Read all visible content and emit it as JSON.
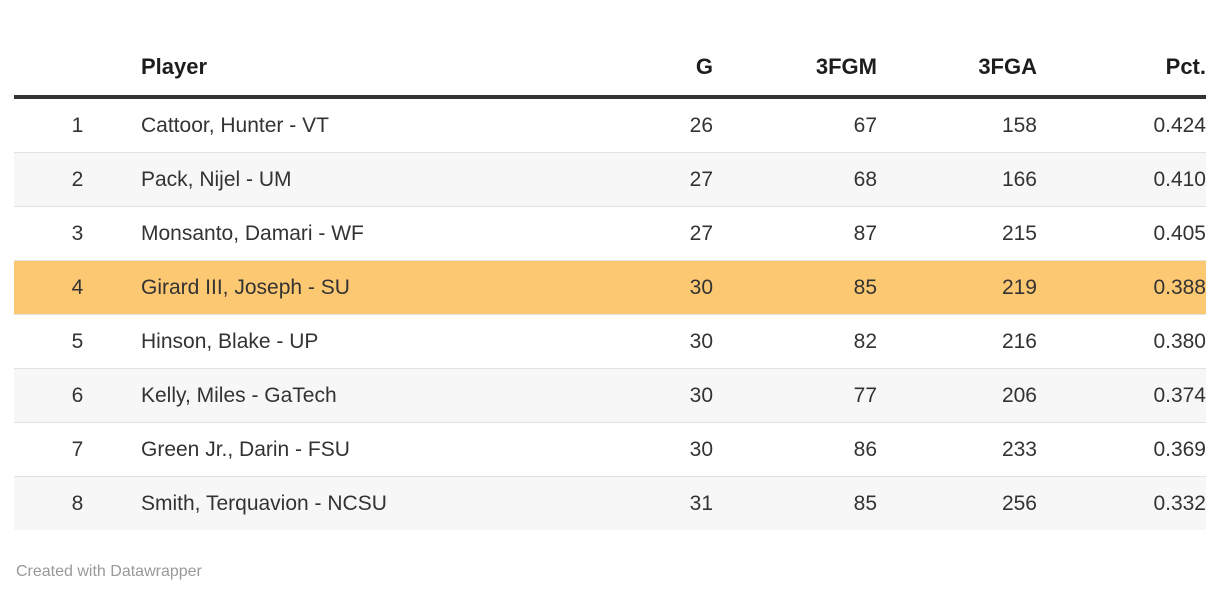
{
  "chart_data": {
    "type": "table",
    "columns": [
      {
        "label": "",
        "align": "center"
      },
      {
        "label": "Player",
        "align": "left"
      },
      {
        "label": "G",
        "align": "right"
      },
      {
        "label": "3FGM",
        "align": "right"
      },
      {
        "label": "3FGA",
        "align": "right"
      },
      {
        "label": "Pct.",
        "align": "right"
      }
    ],
    "rows": [
      {
        "rank": "1",
        "player": "Cattoor, Hunter - VT",
        "g": "26",
        "fgm3": "67",
        "fga3": "158",
        "pct": "0.424",
        "highlight": false
      },
      {
        "rank": "2",
        "player": "Pack, Nijel - UM",
        "g": "27",
        "fgm3": "68",
        "fga3": "166",
        "pct": "0.410",
        "highlight": false
      },
      {
        "rank": "3",
        "player": "Monsanto, Damari - WF",
        "g": "27",
        "fgm3": "87",
        "fga3": "215",
        "pct": "0.405",
        "highlight": false
      },
      {
        "rank": "4",
        "player": "Girard III, Joseph - SU",
        "g": "30",
        "fgm3": "85",
        "fga3": "219",
        "pct": "0.388",
        "highlight": true
      },
      {
        "rank": "5",
        "player": "Hinson, Blake - UP",
        "g": "30",
        "fgm3": "82",
        "fga3": "216",
        "pct": "0.380",
        "highlight": false
      },
      {
        "rank": "6",
        "player": "Kelly, Miles - GaTech",
        "g": "30",
        "fgm3": "77",
        "fga3": "206",
        "pct": "0.374",
        "highlight": false
      },
      {
        "rank": "7",
        "player": "Green Jr., Darin - FSU",
        "g": "30",
        "fgm3": "86",
        "fga3": "233",
        "pct": "0.369",
        "highlight": false
      },
      {
        "rank": "8",
        "player": "Smith, Terquavion - NCSU",
        "g": "31",
        "fgm3": "85",
        "fga3": "256",
        "pct": "0.332",
        "highlight": false
      }
    ],
    "highlighted_row_rank": "4",
    "legend_position": "none",
    "grid": "horizontal-row-separators"
  },
  "footer": {
    "attribution": "Created with Datawrapper"
  },
  "colors": {
    "highlight": "#fdc872",
    "stripe": "#f7f7f7",
    "separator": "#e2e2e2",
    "header_rule": "#333333",
    "header_text": "#1d1d1d",
    "body_text": "#333333",
    "footer_text": "#999999"
  }
}
